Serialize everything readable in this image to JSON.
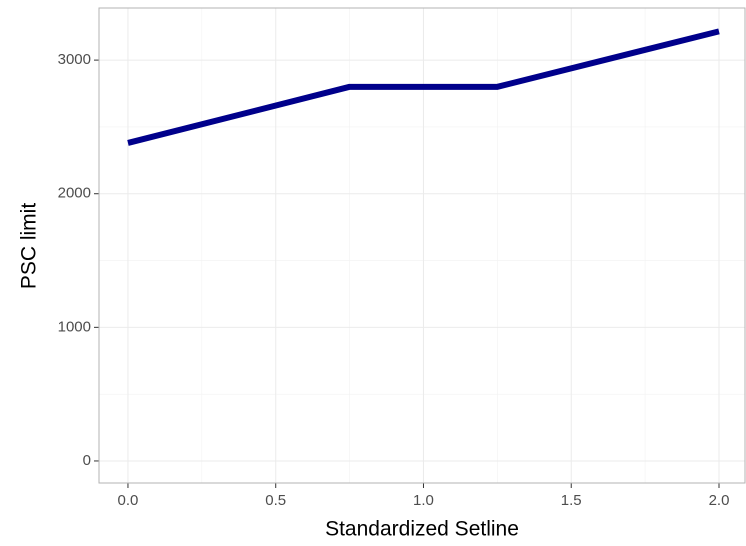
{
  "chart_data": {
    "type": "line",
    "x_label": "Standardized Setline",
    "y_label": "PSC limit",
    "x": [
      0,
      0.75,
      1.25,
      2.0
    ],
    "series": [
      {
        "color": "#00008b",
        "values": [
          2380,
          2800,
          2800,
          3215
        ]
      }
    ],
    "xlim": [
      -0.098,
      2.088
    ],
    "ylim": [
      -165,
      3390
    ],
    "xticks": [
      {
        "value": 0,
        "label": "0.0"
      },
      0.5,
      {
        "value": 1,
        "label": "1.0"
      },
      1.5,
      {
        "value": 2,
        "label": "2.0"
      }
    ],
    "yticks": [
      0,
      1000,
      2000,
      3000
    ],
    "xminor": [
      0.25,
      0.75,
      1.25,
      1.75
    ],
    "yminor": [
      500,
      1500,
      2500
    ],
    "grid": true
  }
}
